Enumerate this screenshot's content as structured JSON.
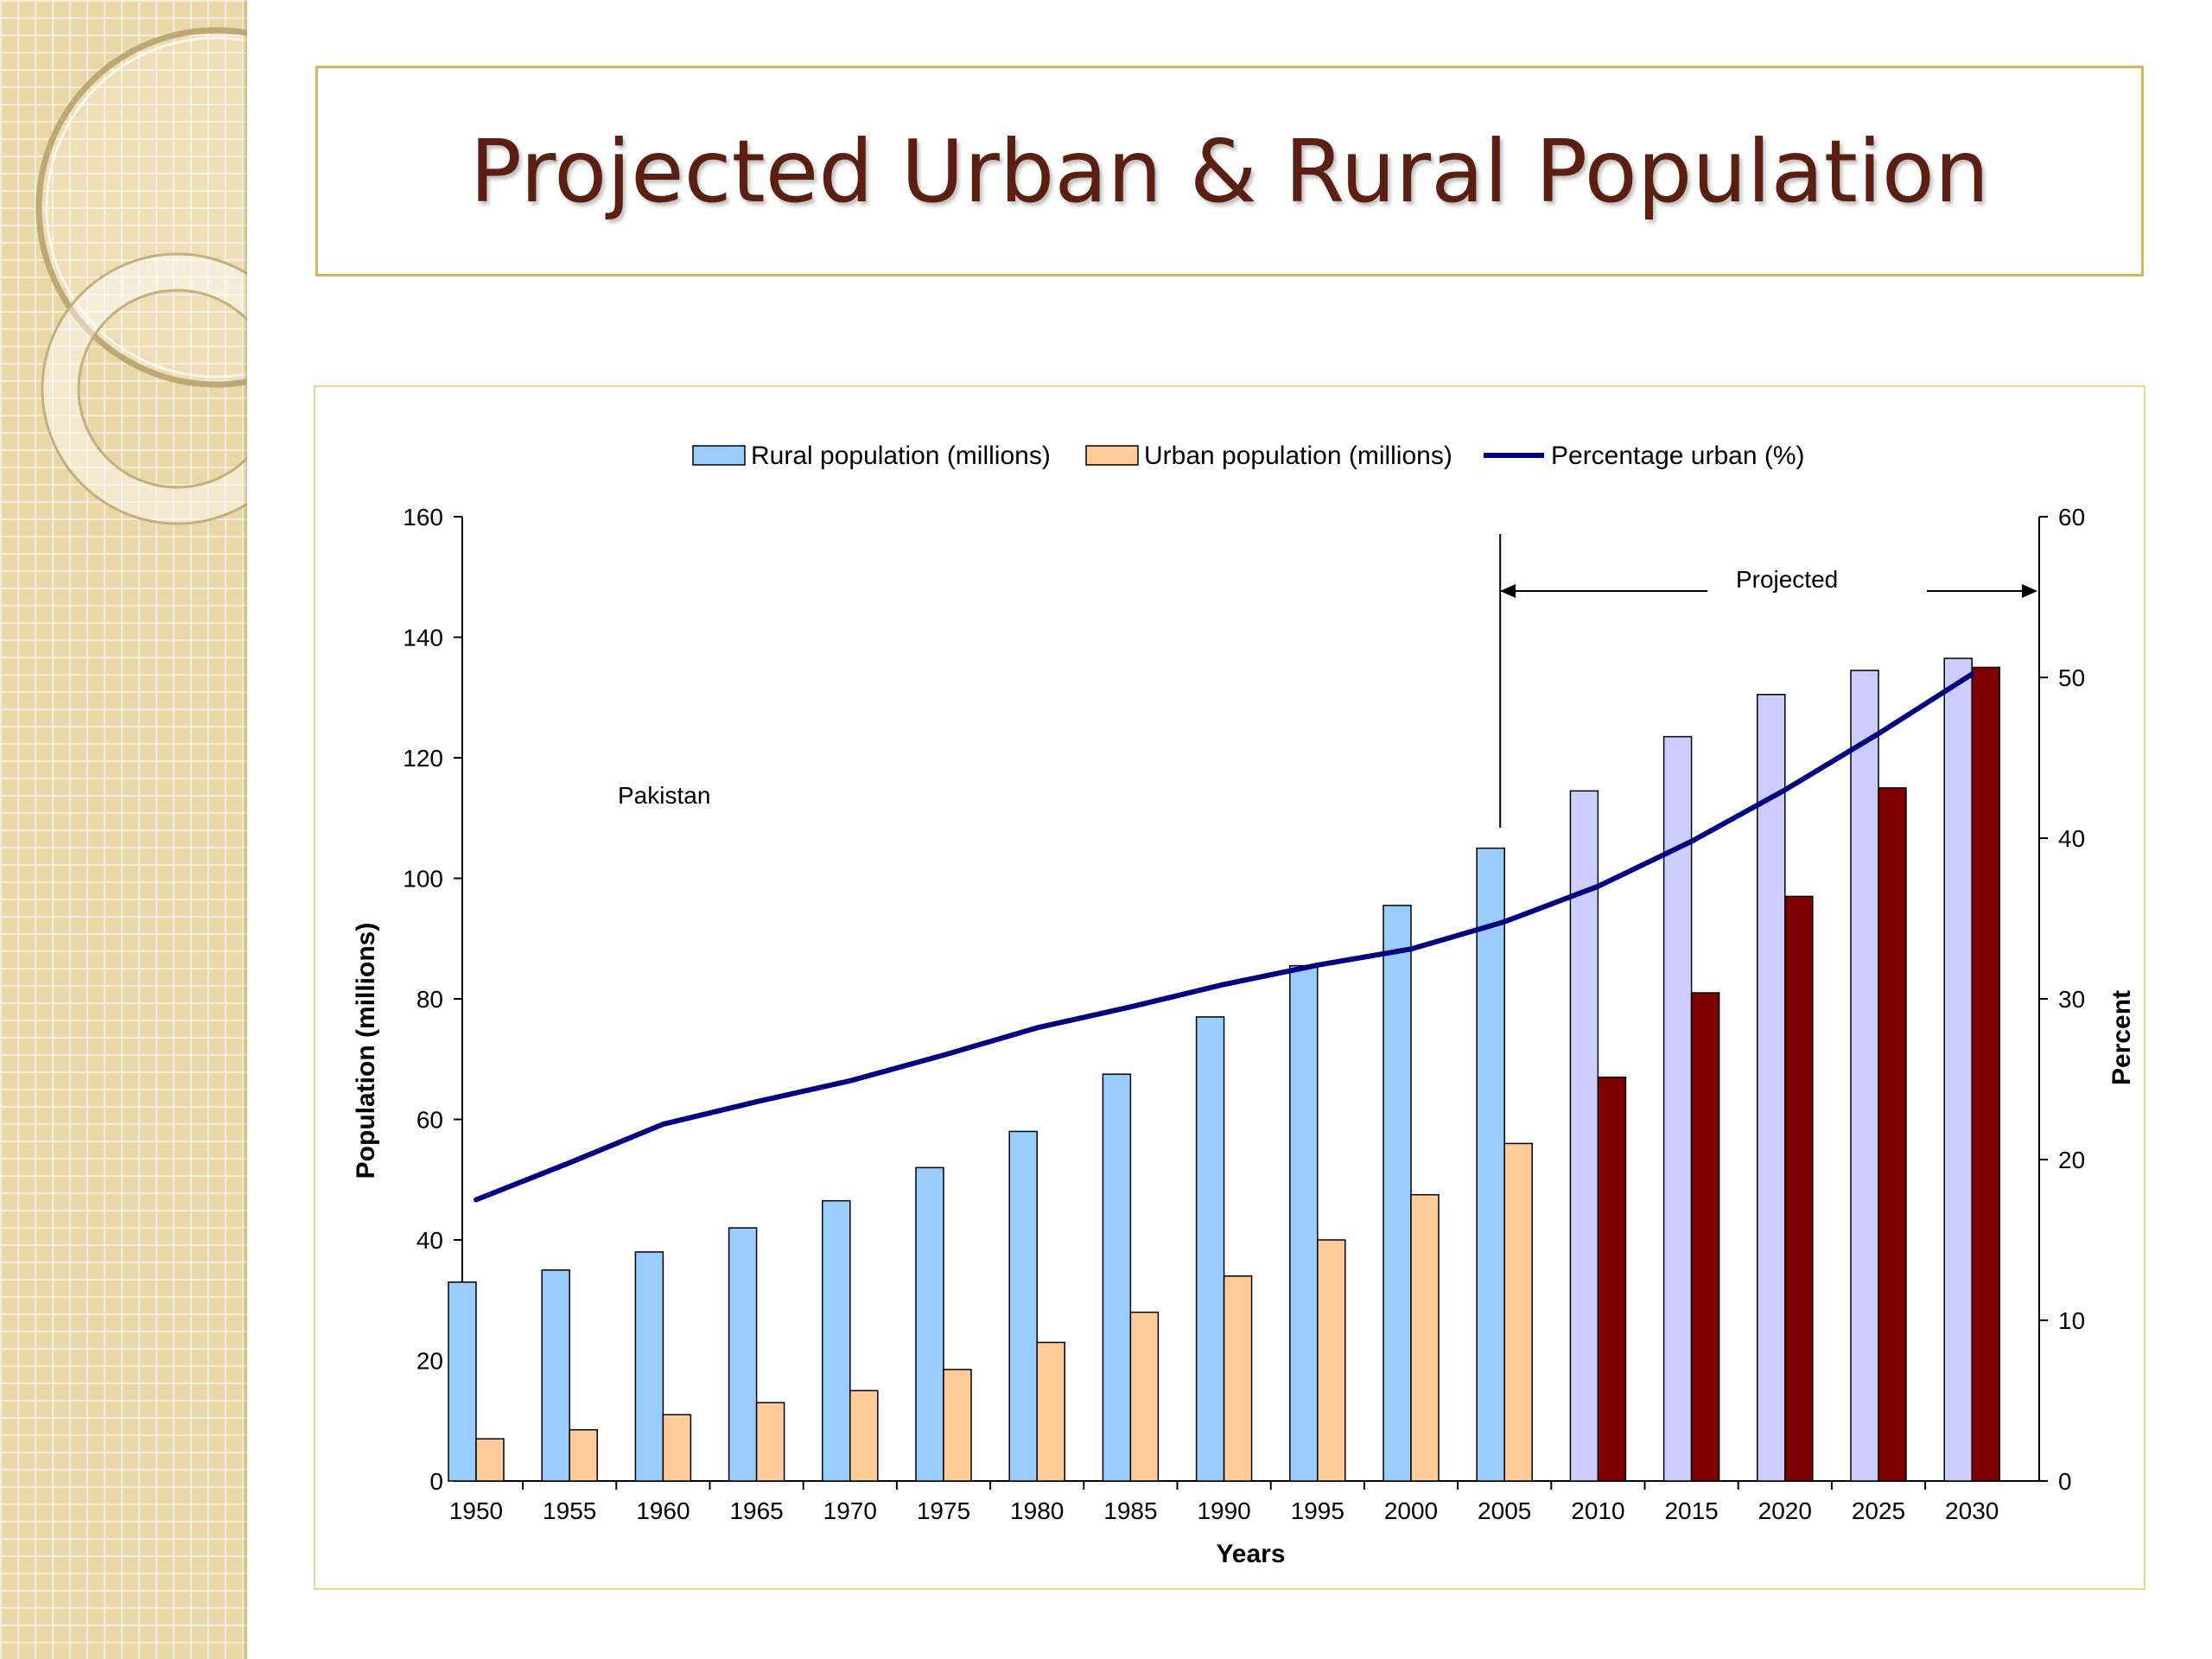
{
  "slide": {
    "title": "Projected Urban & Rural Population"
  },
  "colors": {
    "title_text": "#5b1f12",
    "title_border": "#d6b65a",
    "rural_actual": "#99ccff",
    "urban_actual": "#ffcc99",
    "rural_projected": "#ccccff",
    "urban_projected": "#800000",
    "percentage_line": "#000080"
  },
  "chart_data": {
    "type": "bar",
    "title": "",
    "xlabel": "Years",
    "ylabel": "Population (millions)",
    "y2label": "Percent",
    "ylim": [
      0,
      160
    ],
    "y2lim": [
      0,
      60
    ],
    "yticks": [
      "0",
      "20",
      "40",
      "60",
      "80",
      "100",
      "120",
      "140",
      "160"
    ],
    "y2ticks": [
      "0",
      "10",
      "20",
      "30",
      "40",
      "50",
      "60"
    ],
    "categories": [
      "1950",
      "1955",
      "1960",
      "1965",
      "1970",
      "1975",
      "1980",
      "1985",
      "1990",
      "1995",
      "2000",
      "2005",
      "2010",
      "2015",
      "2020",
      "2025",
      "2030"
    ],
    "legend_position": "top-center",
    "grid": false,
    "series": [
      {
        "name": "Rural population (millions)",
        "kind": "bar",
        "axis": "left",
        "values": [
          33,
          35,
          38,
          42,
          46.5,
          52,
          58,
          67.5,
          77,
          85.5,
          95.5,
          105,
          114.5,
          123.5,
          130.5,
          134.5,
          136.5
        ]
      },
      {
        "name": "Urban population (millions)",
        "kind": "bar",
        "axis": "left",
        "values": [
          7,
          8.5,
          11,
          13,
          15,
          18.5,
          23,
          28,
          34,
          40,
          47.5,
          56,
          67,
          81,
          97,
          115,
          135
        ]
      },
      {
        "name": "Percentage urban (%)",
        "kind": "line",
        "axis": "right",
        "values": [
          17.5,
          19.8,
          22.2,
          23.6,
          24.9,
          26.5,
          28.2,
          29.5,
          30.9,
          32.1,
          33.1,
          34.8,
          37,
          39.8,
          43,
          46.5,
          50.2
        ]
      }
    ],
    "projected_from": "2010",
    "annotations": {
      "country": "Pakistan",
      "projected": "Projected"
    }
  }
}
